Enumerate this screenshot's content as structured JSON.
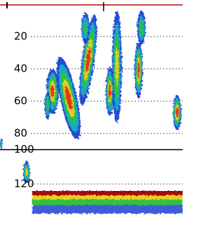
{
  "depth_scale": {
    "labels": [
      20,
      40,
      60,
      80,
      100,
      120
    ]
  }
}
